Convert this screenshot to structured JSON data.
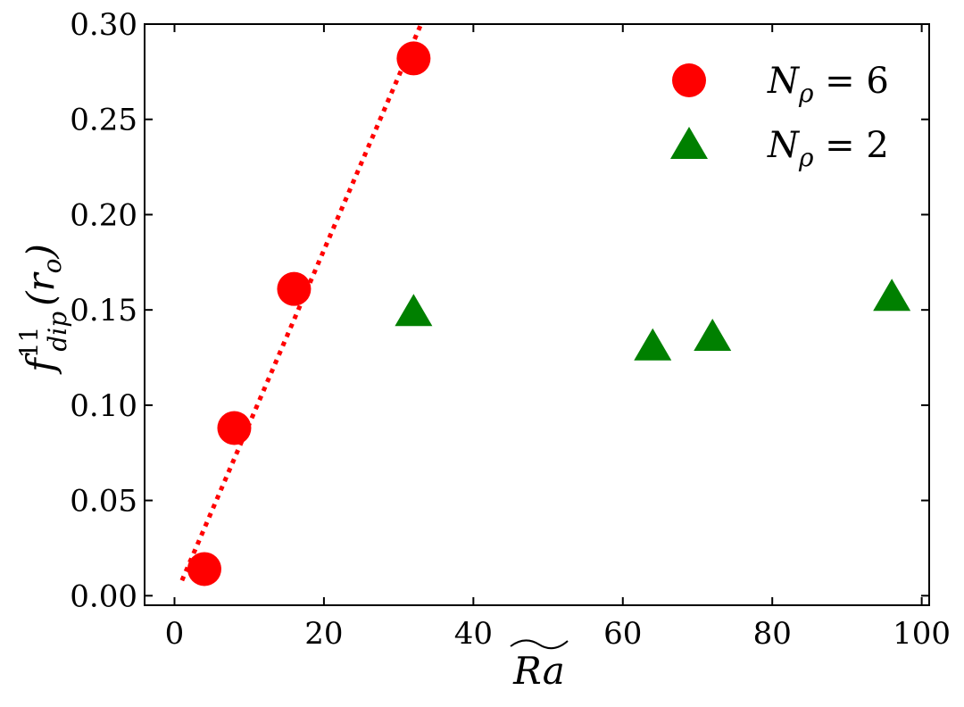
{
  "chart_data": {
    "type": "scatter",
    "xlabel": "Ra",
    "ylabel_base": "f",
    "ylabel_sup": "11",
    "ylabel_sub": "dip",
    "ylabel_arg": "(r",
    "ylabel_arg_sub": "o",
    "ylabel_close": ")",
    "xlim": [
      -4,
      101
    ],
    "ylim": [
      -0.005,
      0.3
    ],
    "xticks": [
      0,
      20,
      40,
      60,
      80,
      100
    ],
    "xtick_labels": [
      "0",
      "20",
      "40",
      "60",
      "80",
      "100"
    ],
    "yticks": [
      0.0,
      0.05,
      0.1,
      0.15,
      0.2,
      0.25,
      0.3
    ],
    "ytick_labels": [
      "0.00",
      "0.05",
      "0.10",
      "0.15",
      "0.20",
      "0.25",
      "0.30"
    ],
    "grid": false,
    "legend_position": "top-right",
    "series": [
      {
        "name": "N_ρ = 6",
        "legend_main": "N",
        "legend_sub": "ρ",
        "legend_value": "= 6",
        "marker": "circle",
        "color": "#ff0000",
        "x": [
          4,
          8,
          16,
          32
        ],
        "y": [
          0.014,
          0.088,
          0.161,
          0.282
        ]
      },
      {
        "name": "N_ρ = 2",
        "legend_main": "N",
        "legend_sub": "ρ",
        "legend_value": "= 2",
        "marker": "triangle",
        "color": "#008000",
        "x": [
          32,
          64,
          72,
          96
        ],
        "y": [
          0.149,
          0.131,
          0.136,
          0.157
        ]
      }
    ],
    "fit_line": {
      "style": "dotted",
      "color": "#ff0000",
      "x": [
        1,
        33
      ],
      "y": [
        0.008,
        0.3
      ]
    }
  }
}
